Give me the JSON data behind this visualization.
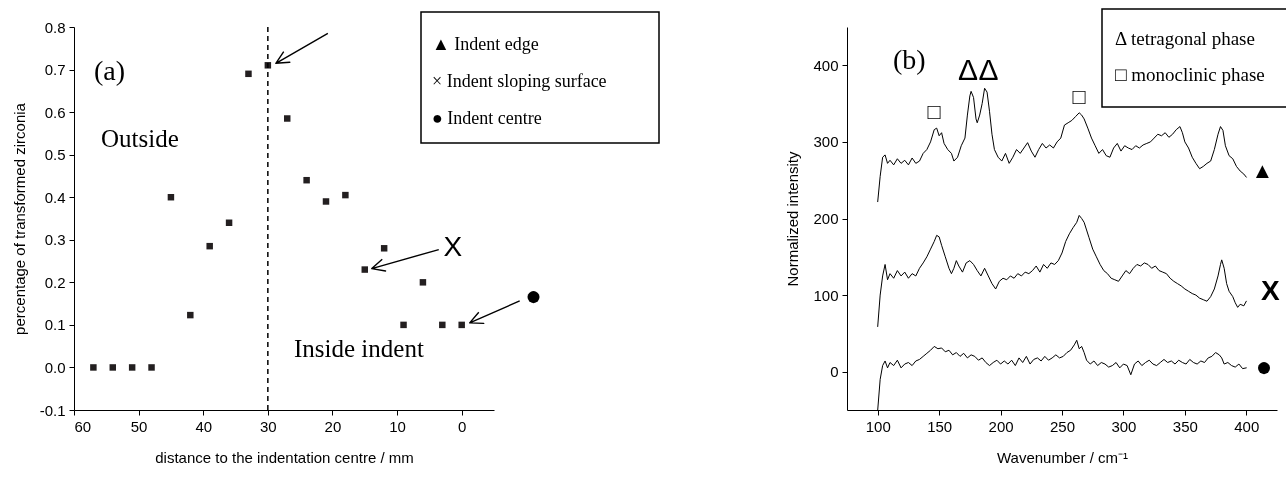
{
  "chart_data": [
    {
      "type": "scatter",
      "xlabel": "distance to the indentation centre / mm",
      "ylabel": "percentage of transformed zirconia",
      "marker": "square",
      "x": [
        57,
        54,
        51,
        48,
        45,
        42,
        39,
        36,
        33,
        30,
        27,
        24,
        21,
        18,
        15,
        12,
        9,
        6,
        3,
        0
      ],
      "series": [
        {
          "color": "#231f20",
          "values": [
            0,
            0,
            0,
            0,
            0.4,
            0.123,
            0.285,
            0.34,
            0.69,
            0.71,
            0.585,
            0.44,
            0.39,
            0.405,
            0.23,
            0.28,
            0.1,
            0.2,
            0.1,
            0.1
          ]
        }
      ],
      "xlim": [
        60,
        -5
      ],
      "xticks": [
        60,
        50,
        40,
        30,
        20,
        10,
        0
      ],
      "ylim": [
        -0.1,
        0.8
      ],
      "yticks": [
        -0.1,
        {
          "value": 0,
          "label": "0.0"
        },
        0.1,
        0.2,
        0.3,
        0.4,
        0.5,
        0.6,
        0.7,
        0.8
      ],
      "ref_lines": [
        {
          "axis": "x",
          "value": 30,
          "line_style": "dashed"
        }
      ],
      "annotations": [
        "(a)",
        "Outside",
        "Inside indent",
        "▲ Indent edge",
        "× Indent sloping surface",
        "● Indent centre",
        {
          "text": "X",
          "x": 15,
          "y": 0.23
        },
        {
          "text": "●",
          "x": 0,
          "y": 0.1
        }
      ]
    },
    {
      "type": "line",
      "xlabel": "Wavenumber / cm⁻¹",
      "ylabel": "Normalized intensity",
      "series": [
        {
          "color": "#000000",
          "x": [
            100,
            102,
            104,
            106,
            108,
            110,
            113,
            116,
            119,
            122,
            125,
            128,
            131,
            134,
            137,
            140,
            143,
            146,
            148,
            150,
            152,
            154,
            157,
            160,
            162,
            165,
            168,
            171,
            173,
            175,
            176,
            178,
            180,
            181,
            183,
            185,
            187,
            189,
            191,
            193,
            195,
            198,
            201,
            204,
            207,
            210,
            213,
            216,
            219,
            222,
            225,
            228,
            231,
            234,
            237,
            240,
            243,
            246,
            249,
            252,
            255,
            258,
            261,
            264,
            266,
            268,
            271,
            274,
            277,
            280,
            283,
            286,
            289,
            292,
            295,
            298,
            301,
            304,
            307,
            310,
            313,
            316,
            319,
            322,
            325,
            328,
            331,
            334,
            337,
            340,
            343,
            346,
            348,
            350,
            353,
            356,
            359,
            362,
            365,
            368,
            371,
            374,
            377,
            379,
            381,
            383,
            386,
            389,
            392,
            395,
            398,
            400
          ],
          "values": [
            222,
            255,
            280,
            283,
            272,
            276,
            270,
            278,
            272,
            276,
            270,
            279,
            272,
            275,
            285,
            290,
            300,
            316,
            318,
            308,
            312,
            298,
            290,
            285,
            275,
            280,
            295,
            305,
            335,
            360,
            366,
            358,
            330,
            325,
            335,
            350,
            370,
            365,
            340,
            310,
            290,
            280,
            275,
            285,
            272,
            280,
            290,
            285,
            292,
            299,
            288,
            280,
            290,
            298,
            292,
            296,
            292,
            300,
            305,
            322,
            325,
            328,
            333,
            338,
            335,
            330,
            318,
            305,
            295,
            285,
            290,
            282,
            280,
            292,
            298,
            288,
            295,
            292,
            290,
            295,
            292,
            296,
            298,
            300,
            305,
            310,
            308,
            312,
            306,
            310,
            316,
            320,
            312,
            300,
            292,
            280,
            272,
            265,
            268,
            272,
            275,
            290,
            310,
            320,
            315,
            295,
            282,
            278,
            268,
            262,
            258,
            254
          ]
        },
        {
          "color": "#000000",
          "x": [
            100,
            102,
            104,
            106,
            108,
            110,
            113,
            116,
            119,
            122,
            125,
            128,
            131,
            134,
            137,
            140,
            143,
            146,
            148,
            150,
            152,
            155,
            158,
            160,
            162,
            164,
            166,
            169,
            172,
            175,
            178,
            181,
            184,
            187,
            190,
            193,
            196,
            199,
            202,
            205,
            208,
            211,
            214,
            217,
            220,
            223,
            226,
            229,
            232,
            235,
            238,
            241,
            244,
            247,
            250,
            253,
            256,
            259,
            262,
            264,
            266,
            268,
            270,
            272,
            275,
            278,
            281,
            284,
            287,
            290,
            293,
            296,
            299,
            302,
            305,
            308,
            311,
            314,
            317,
            320,
            323,
            326,
            329,
            332,
            335,
            338,
            341,
            344,
            347,
            350,
            353,
            356,
            359,
            362,
            365,
            368,
            371,
            374,
            377,
            379,
            380,
            382,
            384,
            386,
            389,
            391,
            393,
            395,
            398,
            400
          ],
          "values": [
            59,
            100,
            125,
            140,
            120,
            128,
            122,
            132,
            125,
            130,
            122,
            128,
            125,
            135,
            142,
            150,
            160,
            170,
            178,
            176,
            165,
            150,
            135,
            128,
            135,
            145,
            138,
            130,
            142,
            145,
            140,
            132,
            125,
            135,
            125,
            115,
            108,
            118,
            122,
            120,
            125,
            122,
            128,
            125,
            130,
            128,
            132,
            138,
            130,
            140,
            135,
            142,
            140,
            145,
            155,
            170,
            180,
            188,
            195,
            204,
            200,
            195,
            185,
            175,
            160,
            150,
            140,
            132,
            128,
            122,
            120,
            118,
            125,
            132,
            128,
            135,
            140,
            138,
            142,
            140,
            135,
            138,
            132,
            130,
            128,
            122,
            118,
            115,
            112,
            108,
            105,
            102,
            100,
            96,
            94,
            92,
            98,
            108,
            125,
            140,
            146,
            135,
            115,
            105,
            98,
            90,
            84,
            88,
            86,
            92
          ]
        },
        {
          "color": "#000000",
          "x": [
            100,
            102,
            104,
            106,
            108,
            110,
            113,
            116,
            119,
            122,
            125,
            128,
            131,
            134,
            137,
            140,
            143,
            146,
            149,
            152,
            155,
            158,
            161,
            164,
            167,
            170,
            173,
            176,
            179,
            182,
            185,
            188,
            191,
            194,
            197,
            200,
            203,
            206,
            209,
            212,
            215,
            218,
            221,
            224,
            227,
            230,
            233,
            236,
            239,
            242,
            245,
            248,
            251,
            254,
            257,
            260,
            262,
            264,
            266,
            268,
            270,
            273,
            276,
            279,
            282,
            285,
            288,
            291,
            294,
            297,
            300,
            303,
            306,
            309,
            312,
            315,
            318,
            321,
            324,
            327,
            330,
            333,
            336,
            339,
            342,
            345,
            348,
            351,
            354,
            357,
            360,
            363,
            366,
            369,
            372,
            375,
            378,
            380,
            382,
            385,
            388,
            391,
            394,
            397,
            400
          ],
          "values": [
            -50,
            -10,
            8,
            14,
            5,
            12,
            8,
            15,
            5,
            10,
            12,
            8,
            14,
            16,
            20,
            24,
            28,
            33,
            30,
            31,
            26,
            28,
            22,
            25,
            20,
            24,
            18,
            22,
            20,
            15,
            18,
            12,
            8,
            12,
            15,
            10,
            14,
            10,
            15,
            8,
            18,
            12,
            20,
            10,
            16,
            18,
            14,
            20,
            15,
            18,
            22,
            18,
            20,
            25,
            28,
            35,
            41,
            30,
            33,
            25,
            15,
            10,
            14,
            8,
            12,
            10,
            6,
            8,
            12,
            5,
            10,
            8,
            -4,
            10,
            14,
            8,
            12,
            15,
            10,
            8,
            12,
            16,
            12,
            14,
            10,
            15,
            12,
            10,
            16,
            12,
            10,
            14,
            12,
            18,
            20,
            25,
            22,
            18,
            10,
            12,
            8,
            6,
            10,
            4,
            5
          ]
        }
      ],
      "xlim": [
        75,
        425
      ],
      "xticks": [
        100,
        150,
        200,
        250,
        300,
        350,
        400
      ],
      "ylim": [
        -50,
        450
      ],
      "yticks": [
        0,
        100,
        200,
        300,
        400
      ],
      "annotations": [
        "(b)",
        "Δ tetragonal phase",
        "□ monoclinic phase",
        {
          "text": "□",
          "x": 146,
          "y": 316
        },
        {
          "text": "Δ",
          "x": 176,
          "y": 366
        },
        {
          "text": "Δ",
          "x": 187,
          "y": 370
        },
        {
          "text": "□",
          "x": 264,
          "y": 338
        },
        {
          "text": "▲",
          "x": 400,
          "y": 254
        },
        {
          "text": "X",
          "x": 400,
          "y": 92
        },
        {
          "text": "●",
          "x": 400,
          "y": 5
        }
      ]
    }
  ]
}
